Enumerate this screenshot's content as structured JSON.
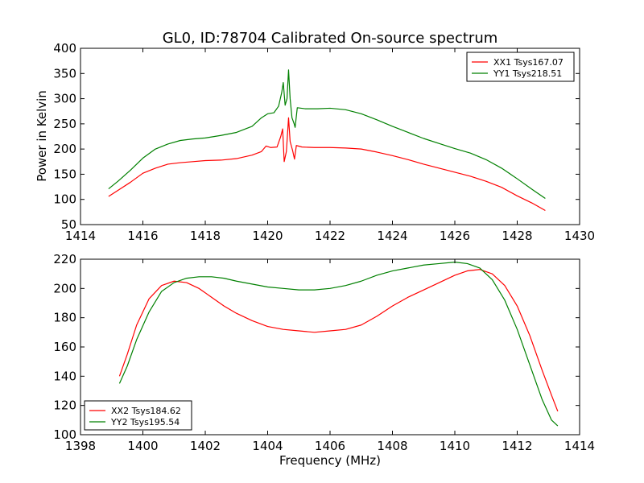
{
  "figure": {
    "title": "GL0, ID:78704 Calibrated On-source spectrum",
    "xlabel": "Frequency (MHz)",
    "ylabel_top": "Power in Kelvin",
    "colors": {
      "red": "#ff0000",
      "green": "#008000",
      "axis": "#000000"
    }
  },
  "chart_data": [
    {
      "type": "line",
      "xlim": [
        1414,
        1430
      ],
      "ylim": [
        50,
        400
      ],
      "xticks": [
        1414,
        1416,
        1418,
        1420,
        1422,
        1424,
        1426,
        1428,
        1430
      ],
      "yticks": [
        50,
        100,
        150,
        200,
        250,
        300,
        350,
        400
      ],
      "xlabel": "",
      "ylabel": "Power in Kelvin",
      "grid": false,
      "legend_position": "top-right",
      "series": [
        {
          "name": "XX1 Tsys167.07",
          "color": "#ff0000",
          "points": [
            [
              1414.9,
              106
            ],
            [
              1415.2,
              118
            ],
            [
              1415.6,
              134
            ],
            [
              1416.0,
              152
            ],
            [
              1416.4,
              162
            ],
            [
              1416.8,
              170
            ],
            [
              1417.2,
              173
            ],
            [
              1417.6,
              175
            ],
            [
              1418.0,
              177
            ],
            [
              1418.5,
              178
            ],
            [
              1419.0,
              181
            ],
            [
              1419.5,
              188
            ],
            [
              1419.8,
              195
            ],
            [
              1419.95,
              206
            ],
            [
              1420.1,
              203
            ],
            [
              1420.3,
              204
            ],
            [
              1420.42,
              225
            ],
            [
              1420.48,
              240
            ],
            [
              1420.53,
              175
            ],
            [
              1420.6,
              195
            ],
            [
              1420.67,
              262
            ],
            [
              1420.72,
              215
            ],
            [
              1420.8,
              197
            ],
            [
              1420.86,
              180
            ],
            [
              1420.92,
              207
            ],
            [
              1421.1,
              204
            ],
            [
              1421.5,
              203
            ],
            [
              1422.0,
              203
            ],
            [
              1422.5,
              202
            ],
            [
              1423.0,
              200
            ],
            [
              1423.5,
              194
            ],
            [
              1424.0,
              187
            ],
            [
              1424.5,
              179
            ],
            [
              1425.0,
              170
            ],
            [
              1425.5,
              162
            ],
            [
              1426.0,
              154
            ],
            [
              1426.5,
              146
            ],
            [
              1427.0,
              136
            ],
            [
              1427.5,
              124
            ],
            [
              1428.0,
              107
            ],
            [
              1428.5,
              92
            ],
            [
              1428.9,
              78
            ]
          ]
        },
        {
          "name": "YY1 Tsys218.51",
          "color": "#008000",
          "points": [
            [
              1414.9,
              121
            ],
            [
              1415.2,
              136
            ],
            [
              1415.6,
              158
            ],
            [
              1416.0,
              182
            ],
            [
              1416.4,
              200
            ],
            [
              1416.8,
              210
            ],
            [
              1417.2,
              217
            ],
            [
              1417.6,
              220
            ],
            [
              1418.0,
              222
            ],
            [
              1418.5,
              227
            ],
            [
              1419.0,
              233
            ],
            [
              1419.5,
              245
            ],
            [
              1419.8,
              262
            ],
            [
              1420.0,
              270
            ],
            [
              1420.2,
              272
            ],
            [
              1420.35,
              285
            ],
            [
              1420.45,
              312
            ],
            [
              1420.5,
              332
            ],
            [
              1420.56,
              287
            ],
            [
              1420.62,
              300
            ],
            [
              1420.67,
              357
            ],
            [
              1420.72,
              300
            ],
            [
              1420.78,
              262
            ],
            [
              1420.85,
              250
            ],
            [
              1420.88,
              243
            ],
            [
              1420.95,
              282
            ],
            [
              1421.2,
              280
            ],
            [
              1421.6,
              280
            ],
            [
              1422.0,
              281
            ],
            [
              1422.5,
              278
            ],
            [
              1423.0,
              270
            ],
            [
              1423.5,
              258
            ],
            [
              1424.0,
              245
            ],
            [
              1424.5,
              233
            ],
            [
              1425.0,
              221
            ],
            [
              1425.5,
              211
            ],
            [
              1426.0,
              201
            ],
            [
              1426.5,
              192
            ],
            [
              1427.0,
              179
            ],
            [
              1427.5,
              162
            ],
            [
              1428.0,
              141
            ],
            [
              1428.5,
              119
            ],
            [
              1428.9,
              102
            ]
          ]
        }
      ]
    },
    {
      "type": "line",
      "xlim": [
        1398,
        1414
      ],
      "ylim": [
        100,
        220
      ],
      "xticks": [
        1398,
        1400,
        1402,
        1404,
        1406,
        1408,
        1410,
        1412,
        1414
      ],
      "yticks": [
        100,
        120,
        140,
        160,
        180,
        200,
        220
      ],
      "xlabel": "Frequency (MHz)",
      "ylabel": "",
      "grid": false,
      "legend_position": "bottom-left",
      "series": [
        {
          "name": "XX2 Tsys184.62",
          "color": "#ff0000",
          "points": [
            [
              1399.25,
              140
            ],
            [
              1399.5,
              155
            ],
            [
              1399.8,
              175
            ],
            [
              1400.2,
              193
            ],
            [
              1400.6,
              202
            ],
            [
              1401.0,
              205
            ],
            [
              1401.4,
              204
            ],
            [
              1401.8,
              200
            ],
            [
              1402.2,
              194
            ],
            [
              1402.6,
              188
            ],
            [
              1403.0,
              183
            ],
            [
              1403.5,
              178
            ],
            [
              1404.0,
              174
            ],
            [
              1404.5,
              172
            ],
            [
              1405.0,
              171
            ],
            [
              1405.5,
              170
            ],
            [
              1406.0,
              171
            ],
            [
              1406.5,
              172
            ],
            [
              1407.0,
              175
            ],
            [
              1407.5,
              181
            ],
            [
              1408.0,
              188
            ],
            [
              1408.5,
              194
            ],
            [
              1409.0,
              199
            ],
            [
              1409.5,
              204
            ],
            [
              1410.0,
              209
            ],
            [
              1410.4,
              212
            ],
            [
              1410.8,
              213
            ],
            [
              1411.2,
              210
            ],
            [
              1411.6,
              202
            ],
            [
              1412.0,
              188
            ],
            [
              1412.4,
              168
            ],
            [
              1412.8,
              144
            ],
            [
              1413.1,
              127
            ],
            [
              1413.3,
              116
            ]
          ]
        },
        {
          "name": "YY2 Tsys195.54",
          "color": "#008000",
          "points": [
            [
              1399.25,
              135
            ],
            [
              1399.5,
              147
            ],
            [
              1399.8,
              165
            ],
            [
              1400.2,
              184
            ],
            [
              1400.6,
              198
            ],
            [
              1401.0,
              204
            ],
            [
              1401.4,
              207
            ],
            [
              1401.8,
              208
            ],
            [
              1402.2,
              208
            ],
            [
              1402.6,
              207
            ],
            [
              1403.0,
              205
            ],
            [
              1403.5,
              203
            ],
            [
              1404.0,
              201
            ],
            [
              1404.5,
              200
            ],
            [
              1405.0,
              199
            ],
            [
              1405.5,
              199
            ],
            [
              1406.0,
              200
            ],
            [
              1406.5,
              202
            ],
            [
              1407.0,
              205
            ],
            [
              1407.5,
              209
            ],
            [
              1408.0,
              212
            ],
            [
              1408.5,
              214
            ],
            [
              1409.0,
              216
            ],
            [
              1409.5,
              217
            ],
            [
              1410.0,
              218
            ],
            [
              1410.4,
              217
            ],
            [
              1410.8,
              214
            ],
            [
              1411.2,
              206
            ],
            [
              1411.6,
              192
            ],
            [
              1412.0,
              172
            ],
            [
              1412.4,
              148
            ],
            [
              1412.8,
              124
            ],
            [
              1413.1,
              110
            ],
            [
              1413.3,
              106
            ]
          ]
        }
      ]
    }
  ]
}
